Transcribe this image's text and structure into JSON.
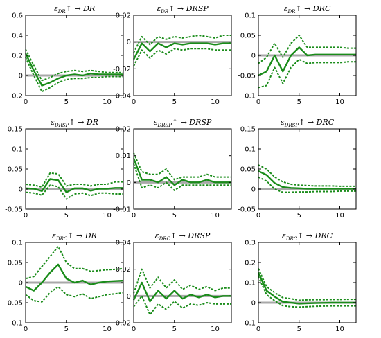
{
  "chart_data": [
    {
      "type": "line",
      "title": "ε_DR↑ → DR",
      "title_sub": "DR",
      "title_response": "DR",
      "x": [
        0,
        1,
        2,
        3,
        4,
        5,
        6,
        7,
        8,
        9,
        10,
        11,
        12
      ],
      "xlim": [
        0,
        12
      ],
      "ylim": [
        -0.2,
        0.6
      ],
      "xticks": [
        0,
        5,
        10
      ],
      "yticks": [
        -0.2,
        0,
        0.2,
        0.4,
        0.6
      ],
      "xticklabels": [
        "0",
        "5",
        "10"
      ],
      "yticklabels": [
        "-0.2",
        "0",
        "0.2",
        "0.4",
        "0.6"
      ],
      "series": [
        {
          "role": "median",
          "values": [
            0.22,
            0.05,
            -0.1,
            -0.07,
            -0.03,
            0.0,
            0.01,
            0.0,
            0.02,
            0.01,
            0.01,
            0.01,
            0.01
          ]
        },
        {
          "role": "upper",
          "values": [
            0.26,
            0.1,
            -0.05,
            -0.02,
            0.02,
            0.04,
            0.05,
            0.04,
            0.05,
            0.04,
            0.03,
            0.03,
            0.03
          ]
        },
        {
          "role": "lower",
          "values": [
            0.18,
            0.0,
            -0.16,
            -0.12,
            -0.07,
            -0.04,
            -0.03,
            -0.03,
            -0.02,
            -0.02,
            -0.01,
            -0.01,
            -0.01
          ]
        }
      ]
    },
    {
      "type": "line",
      "title": "ε_DR↑ → DRSP",
      "title_sub": "DR",
      "title_response": "DRSP",
      "x": [
        0,
        1,
        2,
        3,
        4,
        5,
        6,
        7,
        8,
        9,
        10,
        11,
        12
      ],
      "xlim": [
        0,
        12
      ],
      "ylim": [
        -0.04,
        0.02
      ],
      "xticks": [
        0,
        5,
        10
      ],
      "yticks": [
        -0.04,
        -0.02,
        0,
        0.02
      ],
      "xticklabels": [
        "0",
        "5",
        "10"
      ],
      "yticklabels": [
        "-0.04",
        "-0.02",
        "0",
        "0.02"
      ],
      "series": [
        {
          "role": "median",
          "values": [
            -0.013,
            -0.001,
            -0.007,
            -0.001,
            -0.004,
            -0.001,
            -0.002,
            -0.001,
            -0.001,
            -0.001,
            -0.002,
            -0.001,
            -0.001
          ]
        },
        {
          "role": "upper",
          "values": [
            -0.008,
            0.004,
            -0.002,
            0.004,
            0.002,
            0.004,
            0.003,
            0.004,
            0.005,
            0.004,
            0.003,
            0.005,
            0.005
          ]
        },
        {
          "role": "lower",
          "values": [
            -0.018,
            -0.006,
            -0.012,
            -0.006,
            -0.009,
            -0.005,
            -0.006,
            -0.005,
            -0.005,
            -0.005,
            -0.006,
            -0.006,
            -0.006
          ]
        }
      ]
    },
    {
      "type": "line",
      "title": "ε_DR↑ → DRC",
      "title_sub": "DR",
      "title_response": "DRC",
      "x": [
        0,
        1,
        2,
        3,
        4,
        5,
        6,
        7,
        8,
        9,
        10,
        11,
        12
      ],
      "xlim": [
        0,
        12
      ],
      "ylim": [
        -0.1,
        0.1
      ],
      "xticks": [
        0,
        5,
        10
      ],
      "yticks": [
        -0.1,
        -0.05,
        0,
        0.05,
        0.1
      ],
      "xticklabels": [
        "0",
        "5",
        "10"
      ],
      "yticklabels": [
        "-0.1",
        "-0.05",
        "0",
        "0.05",
        "0.1"
      ],
      "series": [
        {
          "role": "median",
          "values": [
            -0.05,
            -0.04,
            0.0,
            -0.04,
            0.0,
            0.02,
            0.0,
            0.002,
            0.002,
            0.002,
            0.002,
            0.002,
            0.002
          ]
        },
        {
          "role": "upper",
          "values": [
            -0.02,
            -0.005,
            0.03,
            -0.005,
            0.03,
            0.05,
            0.02,
            0.02,
            0.02,
            0.02,
            0.02,
            0.018,
            0.018
          ]
        },
        {
          "role": "lower",
          "values": [
            -0.08,
            -0.075,
            -0.03,
            -0.07,
            -0.03,
            -0.01,
            -0.02,
            -0.018,
            -0.018,
            -0.018,
            -0.018,
            -0.016,
            -0.016
          ]
        }
      ]
    },
    {
      "type": "line",
      "title": "ε_DRSP↑ → DR",
      "title_sub": "DRSP",
      "title_response": "DR",
      "x": [
        0,
        1,
        2,
        3,
        4,
        5,
        6,
        7,
        8,
        9,
        10,
        11,
        12
      ],
      "xlim": [
        0,
        12
      ],
      "ylim": [
        -0.05,
        0.15
      ],
      "xticks": [
        0,
        5,
        10
      ],
      "yticks": [
        -0.05,
        0,
        0.05,
        0.1,
        0.15
      ],
      "xticklabels": [
        "0",
        "5",
        "10"
      ],
      "yticklabels": [
        "-0.05",
        "0",
        "0.05",
        "0.1",
        "0.15"
      ],
      "series": [
        {
          "role": "median",
          "values": [
            0.002,
            0.001,
            -0.005,
            0.025,
            0.022,
            -0.008,
            0.002,
            0.002,
            -0.004,
            0.001,
            0.001,
            0.003,
            0.003
          ]
        },
        {
          "role": "upper",
          "values": [
            0.012,
            0.01,
            0.005,
            0.04,
            0.038,
            0.008,
            0.012,
            0.012,
            0.008,
            0.012,
            0.012,
            0.018,
            0.018
          ]
        },
        {
          "role": "lower",
          "values": [
            -0.008,
            -0.01,
            -0.015,
            0.01,
            0.006,
            -0.025,
            -0.012,
            -0.01,
            -0.016,
            -0.01,
            -0.01,
            -0.012,
            -0.012
          ]
        }
      ]
    },
    {
      "type": "line",
      "title": "ε_DRSP↑ → DRSP",
      "title_sub": "DRSP",
      "title_response": "DRSP",
      "x": [
        0,
        1,
        2,
        3,
        4,
        5,
        6,
        7,
        8,
        9,
        10,
        11,
        12
      ],
      "xlim": [
        0,
        12
      ],
      "ylim": [
        -0.01,
        0.02
      ],
      "xticks": [
        0,
        5,
        10
      ],
      "yticks": [
        -0.01,
        0,
        0.01,
        0.02
      ],
      "xticklabels": [
        "0",
        "5",
        "10"
      ],
      "yticklabels": [
        "-0.01",
        "0",
        "0.01",
        "0.02"
      ],
      "series": [
        {
          "role": "median",
          "values": [
            0.009,
            0.001,
            0.001,
            0.0,
            0.002,
            -0.001,
            0.001,
            0.0,
            0.0,
            0.001,
            0.0,
            0.0,
            0.0
          ]
        },
        {
          "role": "upper",
          "values": [
            0.011,
            0.004,
            0.003,
            0.003,
            0.005,
            0.001,
            0.002,
            0.002,
            0.002,
            0.003,
            0.002,
            0.002,
            0.002
          ]
        },
        {
          "role": "lower",
          "values": [
            0.007,
            -0.002,
            -0.001,
            -0.002,
            0.0,
            -0.003,
            -0.001,
            -0.001,
            -0.001,
            -0.001,
            -0.001,
            -0.001,
            -0.001
          ]
        }
      ]
    },
    {
      "type": "line",
      "title": "ε_DRSP↑ → DRC",
      "title_sub": "DRSP",
      "title_response": "DRC",
      "x": [
        0,
        1,
        2,
        3,
        4,
        5,
        6,
        7,
        8,
        9,
        10,
        11,
        12
      ],
      "xlim": [
        0,
        12
      ],
      "ylim": [
        -0.05,
        0.15
      ],
      "xticks": [
        0,
        5,
        10
      ],
      "yticks": [
        -0.05,
        0,
        0.05,
        0.1,
        0.15
      ],
      "xticklabels": [
        "0",
        "5",
        "10"
      ],
      "yticklabels": [
        "-0.05",
        "0",
        "0.05",
        "0.1",
        "0.15"
      ],
      "series": [
        {
          "role": "median",
          "values": [
            0.045,
            0.035,
            0.015,
            0.005,
            0.003,
            0.002,
            0.001,
            0.001,
            0.001,
            0.001,
            0.001,
            0.001,
            0.001
          ]
        },
        {
          "role": "upper",
          "values": [
            0.06,
            0.05,
            0.03,
            0.018,
            0.012,
            0.01,
            0.009,
            0.008,
            0.008,
            0.008,
            0.007,
            0.007,
            0.007
          ]
        },
        {
          "role": "lower",
          "values": [
            0.03,
            0.02,
            0.0,
            -0.008,
            -0.008,
            -0.007,
            -0.007,
            -0.006,
            -0.006,
            -0.006,
            -0.005,
            -0.005,
            -0.005
          ]
        }
      ]
    },
    {
      "type": "line",
      "title": "ε_DRC↑ → DR",
      "title_sub": "DRC",
      "title_response": "DR",
      "x": [
        0,
        1,
        2,
        3,
        4,
        5,
        6,
        7,
        8,
        9,
        10,
        11,
        12
      ],
      "xlim": [
        0,
        12
      ],
      "ylim": [
        -0.1,
        0.1
      ],
      "xticks": [
        0,
        5,
        10
      ],
      "yticks": [
        -0.1,
        -0.05,
        0,
        0.05,
        0.1
      ],
      "xticklabels": [
        "0",
        "5",
        "10"
      ],
      "yticklabels": [
        "-0.1",
        "-0.05",
        "0",
        "0.05",
        "0.1"
      ],
      "series": [
        {
          "role": "median",
          "values": [
            -0.01,
            -0.02,
            0.0,
            0.025,
            0.045,
            0.01,
            0.0,
            0.005,
            -0.005,
            0.0,
            0.003,
            0.004,
            0.005
          ]
        },
        {
          "role": "upper",
          "values": [
            0.01,
            0.015,
            0.04,
            0.065,
            0.09,
            0.05,
            0.035,
            0.035,
            0.028,
            0.03,
            0.032,
            0.033,
            0.035
          ]
        },
        {
          "role": "lower",
          "values": [
            -0.03,
            -0.045,
            -0.048,
            -0.025,
            -0.01,
            -0.03,
            -0.035,
            -0.028,
            -0.04,
            -0.035,
            -0.03,
            -0.028,
            -0.025
          ]
        }
      ]
    },
    {
      "type": "line",
      "title": "ε_DRC↑ → DRSP",
      "title_sub": "DRC",
      "title_response": "DRSP",
      "x": [
        0,
        1,
        2,
        3,
        4,
        5,
        6,
        7,
        8,
        9,
        10,
        11,
        12
      ],
      "xlim": [
        0,
        12
      ],
      "ylim": [
        -0.02,
        0.04
      ],
      "xticks": [
        0,
        5,
        10
      ],
      "yticks": [
        -0.02,
        0,
        0.02,
        0.04
      ],
      "xticklabels": [
        "0",
        "5",
        "10"
      ],
      "yticklabels": [
        "-0.02",
        "0",
        "0.02",
        "0.04"
      ],
      "series": [
        {
          "role": "median",
          "values": [
            -0.003,
            0.01,
            -0.004,
            0.004,
            -0.002,
            0.004,
            -0.002,
            0.001,
            -0.001,
            0.001,
            -0.001,
            0.0,
            0.0
          ]
        },
        {
          "role": "upper",
          "values": [
            0.002,
            0.02,
            0.006,
            0.014,
            0.006,
            0.012,
            0.005,
            0.008,
            0.005,
            0.007,
            0.004,
            0.006,
            0.006
          ]
        },
        {
          "role": "lower",
          "values": [
            -0.008,
            0.0,
            -0.014,
            -0.006,
            -0.01,
            -0.004,
            -0.009,
            -0.006,
            -0.007,
            -0.005,
            -0.006,
            -0.006,
            -0.006
          ]
        }
      ]
    },
    {
      "type": "line",
      "title": "ε_DRC↑ → DRC",
      "title_sub": "DRC",
      "title_response": "DRC",
      "x": [
        0,
        1,
        2,
        3,
        4,
        5,
        6,
        7,
        8,
        9,
        10,
        11,
        12
      ],
      "xlim": [
        0,
        12
      ],
      "ylim": [
        -0.1,
        0.3
      ],
      "xticks": [
        0,
        5,
        10
      ],
      "yticks": [
        -0.1,
        0,
        0.1,
        0.2,
        0.3
      ],
      "xticklabels": [
        "0",
        "5",
        "10"
      ],
      "yticklabels": [
        "-0.1",
        "0",
        "0.1",
        "0.2",
        "0.3"
      ],
      "series": [
        {
          "role": "median",
          "values": [
            0.15,
            0.06,
            0.03,
            0.005,
            0.0,
            -0.005,
            -0.003,
            -0.002,
            -0.001,
            0.0,
            0.0,
            0.0,
            0.0
          ]
        },
        {
          "role": "upper",
          "values": [
            0.17,
            0.08,
            0.05,
            0.025,
            0.02,
            0.012,
            0.014,
            0.015,
            0.015,
            0.016,
            0.016,
            0.017,
            0.017
          ]
        },
        {
          "role": "lower",
          "values": [
            0.13,
            0.04,
            0.01,
            -0.015,
            -0.02,
            -0.022,
            -0.02,
            -0.018,
            -0.017,
            -0.016,
            -0.016,
            -0.016,
            -0.016
          ]
        }
      ]
    }
  ],
  "colors": {
    "irf_line": "#1a8c1a",
    "zero_line": "#a8a8a8",
    "axes": "#000000",
    "background": "#ffffff"
  }
}
